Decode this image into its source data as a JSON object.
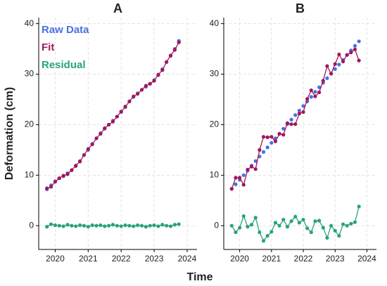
{
  "xlabel": "Time",
  "ylabel": "Deformation (cm)",
  "chart_data": [
    {
      "type": "scatter",
      "title": "A",
      "legend": "upper left",
      "grid": true,
      "x": [
        2019.75,
        2019.875,
        2020,
        2020.125,
        2020.25,
        2020.375,
        2020.5,
        2020.625,
        2020.75,
        2020.875,
        2021,
        2021.125,
        2021.25,
        2021.375,
        2021.5,
        2021.625,
        2021.75,
        2021.875,
        2022,
        2022.125,
        2022.25,
        2022.375,
        2022.5,
        2022.625,
        2022.75,
        2022.875,
        2023,
        2023.125,
        2023.25,
        2023.375,
        2023.5,
        2023.625,
        2023.75
      ],
      "xlim": [
        2019.5,
        2024.3
      ],
      "xticks": [
        2020,
        2021,
        2022,
        2023,
        2024
      ],
      "ylim": [
        -4.7,
        41.2
      ],
      "yticks": [
        0,
        10,
        20,
        30,
        40
      ],
      "series": [
        {
          "name": "Raw Data",
          "color": "#4a6fe3",
          "mode": "markers",
          "values": [
            7.2,
            8.0,
            8.8,
            9.4,
            9.8,
            10.4,
            11.0,
            11.8,
            12.8,
            14.0,
            15.0,
            16.2,
            17.3,
            18.3,
            19.2,
            20.0,
            20.8,
            21.6,
            22.5,
            23.6,
            24.6,
            25.5,
            26.2,
            26.9,
            27.5,
            28.1,
            28.8,
            29.8,
            31.0,
            32.4,
            33.6,
            35.0,
            36.6
          ]
        },
        {
          "name": "Fit",
          "color": "#a0185a",
          "mode": "lines+markers",
          "values": [
            7.4,
            7.7,
            8.7,
            9.4,
            9.9,
            10.2,
            11.0,
            11.9,
            12.7,
            14.0,
            15.2,
            16.1,
            17.3,
            18.2,
            19.3,
            20.0,
            20.6,
            21.6,
            22.6,
            23.5,
            24.6,
            25.6,
            26.1,
            26.9,
            27.7,
            28.1,
            28.7,
            29.9,
            30.8,
            32.4,
            33.7,
            34.8,
            36.3
          ]
        },
        {
          "name": "Residual",
          "color": "#2aa37a",
          "mode": "lines+markers",
          "values": [
            -0.2,
            0.3,
            0.1,
            0,
            -0.1,
            0.2,
            0,
            -0.1,
            0.1,
            0,
            -0.2,
            0.1,
            0,
            0.1,
            -0.1,
            0,
            0.2,
            0,
            -0.1,
            0.1,
            0,
            -0.1,
            0.1,
            0,
            -0.2,
            0,
            0.1,
            -0.1,
            0.2,
            0,
            -0.1,
            0.2,
            0.3
          ]
        }
      ]
    },
    {
      "type": "scatter",
      "title": "B",
      "grid": true,
      "x": [
        2019.75,
        2019.875,
        2020,
        2020.125,
        2020.25,
        2020.375,
        2020.5,
        2020.625,
        2020.75,
        2020.875,
        2021,
        2021.125,
        2021.25,
        2021.375,
        2021.5,
        2021.625,
        2021.75,
        2021.875,
        2022,
        2022.125,
        2022.25,
        2022.375,
        2022.5,
        2022.625,
        2022.75,
        2022.875,
        2023,
        2023.125,
        2023.25,
        2023.375,
        2023.5,
        2023.625,
        2023.75
      ],
      "xlim": [
        2019.5,
        2024.3
      ],
      "xticks": [
        2020,
        2021,
        2022,
        2023,
        2024
      ],
      "ylim": [
        -4.7,
        41.2
      ],
      "yticks": [
        0,
        10,
        20,
        30,
        40
      ],
      "series": [
        {
          "color": "#4a6fe3",
          "mode": "markers",
          "values": [
            7.3,
            8.2,
            9.1,
            10.0,
            10.9,
            11.9,
            12.8,
            13.7,
            14.6,
            15.5,
            16.4,
            17.3,
            18.2,
            19.2,
            20.1,
            21.0,
            21.9,
            22.8,
            23.7,
            24.6,
            25.5,
            26.5,
            27.4,
            28.3,
            29.2,
            30.1,
            31.0,
            31.9,
            32.8,
            33.8,
            34.7,
            35.6,
            36.5
          ]
        },
        {
          "color": "#a0185a",
          "mode": "lines+markers",
          "values": [
            7.3,
            9.5,
            9.5,
            8.1,
            11.1,
            11.7,
            11.2,
            15.0,
            17.6,
            17.5,
            17.6,
            16.7,
            18.2,
            18.0,
            20.3,
            20.1,
            20.1,
            22.2,
            22.5,
            25.1,
            26.8,
            25.6,
            26.4,
            28.7,
            31.6,
            30.1,
            32.0,
            33.9,
            32.5,
            33.8,
            34.3,
            34.9,
            32.7
          ]
        },
        {
          "color": "#2aa37a",
          "mode": "lines+markers",
          "values": [
            0,
            -1.3,
            -0.4,
            1.9,
            -0.2,
            0.2,
            1.6,
            -1.3,
            -3.0,
            -2.0,
            -1.2,
            0.6,
            0,
            1.2,
            -0.2,
            0.9,
            1.8,
            0.6,
            1.2,
            -0.5,
            -1.3,
            0.9,
            1.0,
            -0.4,
            -2.4,
            0,
            -1.0,
            -2.0,
            0.3,
            0,
            0.4,
            0.7,
            3.8
          ]
        }
      ]
    }
  ]
}
